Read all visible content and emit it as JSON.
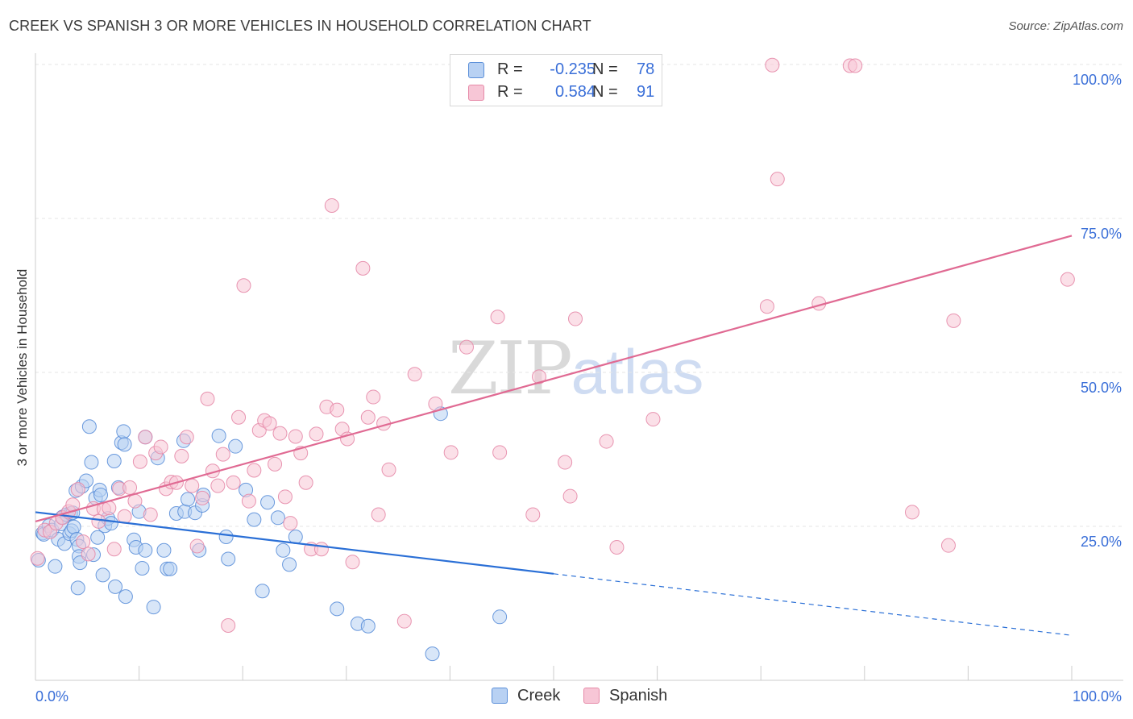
{
  "title": "CREEK VS SPANISH 3 OR MORE VEHICLES IN HOUSEHOLD CORRELATION CHART",
  "source": "Source: ZipAtlas.com",
  "watermark": {
    "zip": "ZIP",
    "atlas": "atlas"
  },
  "legend_top": {
    "rows": [
      {
        "r_label": "R =",
        "r_value": "-0.235",
        "n_label": "N =",
        "n_value": "78"
      },
      {
        "r_label": "R =",
        "r_value": "0.584",
        "n_label": "N =",
        "n_value": "91"
      }
    ]
  },
  "colors": {
    "creek_fill": "#b8d1f3",
    "creek_stroke": "#5b8fd9",
    "creek_line": "#2a6fd6",
    "spanish_fill": "#f7c6d6",
    "spanish_stroke": "#e68aa8",
    "spanish_line": "#e06a93",
    "axis_text": "#3a6fd8",
    "grid": "#e6e6e6"
  },
  "chart_data": {
    "type": "scatter",
    "title": "CREEK VS SPANISH 3 OR MORE VEHICLES IN HOUSEHOLD CORRELATION CHART",
    "xlabel": "",
    "ylabel": "3 or more Vehicles in Household",
    "xlim": [
      0,
      100
    ],
    "ylim": [
      0,
      100
    ],
    "x_tick_labels": [
      "0.0%",
      "100.0%"
    ],
    "y_tick_labels": [
      "25.0%",
      "50.0%",
      "75.0%",
      "100.0%"
    ],
    "y_ticks": [
      25,
      50,
      75,
      100
    ],
    "legend_position": "bottom-center",
    "series": [
      {
        "name": "Creek",
        "r": -0.235,
        "n": 78,
        "trend": {
          "x0": 0,
          "y0": 27.3,
          "x1": 50,
          "y1": 17.3,
          "dashed_to": 100,
          "dashed_y": 7.3
        },
        "points": [
          [
            0.3,
            19.5
          ],
          [
            0.7,
            23.9
          ],
          [
            0.8,
            23.7
          ],
          [
            1.3,
            25.1
          ],
          [
            1.6,
            24.4
          ],
          [
            1.9,
            18.5
          ],
          [
            2.2,
            22.9
          ],
          [
            2.5,
            25.4
          ],
          [
            2.6,
            26.5
          ],
          [
            2.8,
            22.2
          ],
          [
            3.0,
            26.9
          ],
          [
            3.3,
            23.8
          ],
          [
            3.5,
            24.3
          ],
          [
            3.4,
            27.1
          ],
          [
            3.6,
            27.2
          ],
          [
            3.7,
            24.9
          ],
          [
            3.9,
            30.8
          ],
          [
            4.0,
            22.9
          ],
          [
            4.2,
            21.8
          ],
          [
            4.2,
            20.1
          ],
          [
            4.1,
            15.0
          ],
          [
            4.3,
            19.1
          ],
          [
            4.5,
            31.5
          ],
          [
            4.9,
            32.4
          ],
          [
            5.2,
            41.2
          ],
          [
            5.4,
            35.4
          ],
          [
            5.6,
            20.4
          ],
          [
            5.8,
            29.6
          ],
          [
            6.0,
            23.2
          ],
          [
            6.2,
            30.9
          ],
          [
            6.3,
            30.1
          ],
          [
            6.5,
            17.1
          ],
          [
            6.7,
            25.1
          ],
          [
            7.0,
            26.3
          ],
          [
            7.3,
            25.5
          ],
          [
            7.6,
            35.6
          ],
          [
            7.7,
            15.2
          ],
          [
            8.0,
            31.3
          ],
          [
            8.3,
            38.6
          ],
          [
            8.5,
            40.4
          ],
          [
            8.6,
            38.3
          ],
          [
            8.7,
            13.6
          ],
          [
            9.5,
            22.8
          ],
          [
            9.7,
            21.6
          ],
          [
            10.0,
            27.4
          ],
          [
            10.3,
            18.2
          ],
          [
            10.6,
            21.1
          ],
          [
            10.6,
            39.5
          ],
          [
            11.4,
            11.9
          ],
          [
            11.8,
            36.1
          ],
          [
            12.4,
            21.1
          ],
          [
            12.7,
            18.1
          ],
          [
            13.0,
            18.1
          ],
          [
            13.6,
            27.1
          ],
          [
            14.3,
            38.9
          ],
          [
            14.4,
            27.4
          ],
          [
            14.7,
            29.4
          ],
          [
            15.4,
            27.2
          ],
          [
            15.8,
            21.1
          ],
          [
            16.1,
            28.4
          ],
          [
            16.2,
            30.1
          ],
          [
            17.7,
            39.7
          ],
          [
            18.4,
            23.3
          ],
          [
            18.6,
            19.7
          ],
          [
            19.3,
            38.0
          ],
          [
            20.3,
            30.9
          ],
          [
            21.1,
            26.1
          ],
          [
            21.9,
            14.5
          ],
          [
            22.4,
            28.9
          ],
          [
            23.4,
            26.4
          ],
          [
            23.9,
            21.1
          ],
          [
            24.5,
            18.8
          ],
          [
            25.1,
            23.3
          ],
          [
            29.1,
            11.6
          ],
          [
            31.1,
            9.2
          ],
          [
            32.1,
            8.8
          ],
          [
            38.3,
            4.3
          ],
          [
            39.1,
            43.3
          ],
          [
            44.8,
            10.3
          ]
        ]
      },
      {
        "name": "Spanish",
        "r": 0.584,
        "n": 91,
        "trend": {
          "x0": 0,
          "y0": 25.8,
          "x1": 100,
          "y1": 72.2
        },
        "points": [
          [
            0.2,
            19.8
          ],
          [
            0.9,
            24.4
          ],
          [
            1.4,
            24.1
          ],
          [
            2.0,
            25.5
          ],
          [
            2.6,
            26.4
          ],
          [
            3.2,
            27.4
          ],
          [
            3.6,
            28.5
          ],
          [
            4.1,
            31.0
          ],
          [
            4.6,
            22.5
          ],
          [
            5.1,
            20.5
          ],
          [
            5.6,
            27.9
          ],
          [
            6.1,
            25.8
          ],
          [
            6.6,
            27.8
          ],
          [
            7.1,
            28.0
          ],
          [
            7.6,
            21.3
          ],
          [
            8.1,
            31.1
          ],
          [
            8.6,
            26.6
          ],
          [
            9.1,
            31.3
          ],
          [
            9.6,
            29.1
          ],
          [
            10.1,
            35.5
          ],
          [
            10.6,
            39.5
          ],
          [
            11.1,
            26.9
          ],
          [
            11.6,
            36.9
          ],
          [
            12.1,
            37.9
          ],
          [
            12.6,
            31.1
          ],
          [
            13.1,
            32.2
          ],
          [
            13.6,
            32.1
          ],
          [
            14.1,
            36.4
          ],
          [
            14.6,
            39.5
          ],
          [
            15.1,
            31.6
          ],
          [
            15.6,
            21.8
          ],
          [
            16.1,
            29.6
          ],
          [
            16.6,
            45.7
          ],
          [
            17.1,
            34.0
          ],
          [
            17.6,
            31.6
          ],
          [
            18.1,
            36.7
          ],
          [
            18.6,
            8.9
          ],
          [
            19.1,
            32.1
          ],
          [
            19.6,
            42.7
          ],
          [
            20.1,
            64.1
          ],
          [
            20.6,
            29.1
          ],
          [
            21.1,
            34.1
          ],
          [
            21.6,
            40.6
          ],
          [
            22.1,
            42.2
          ],
          [
            22.6,
            41.7
          ],
          [
            23.1,
            35.1
          ],
          [
            23.6,
            40.1
          ],
          [
            24.1,
            29.8
          ],
          [
            24.6,
            25.5
          ],
          [
            25.1,
            39.6
          ],
          [
            25.6,
            36.9
          ],
          [
            26.1,
            32.1
          ],
          [
            26.6,
            21.3
          ],
          [
            27.1,
            40.0
          ],
          [
            27.6,
            21.3
          ],
          [
            28.1,
            44.4
          ],
          [
            28.6,
            77.1
          ],
          [
            29.1,
            43.9
          ],
          [
            29.6,
            40.8
          ],
          [
            30.1,
            39.2
          ],
          [
            30.6,
            19.2
          ],
          [
            31.6,
            66.9
          ],
          [
            32.1,
            42.7
          ],
          [
            32.6,
            46.0
          ],
          [
            33.1,
            26.9
          ],
          [
            33.6,
            41.7
          ],
          [
            34.1,
            34.2
          ],
          [
            35.6,
            9.6
          ],
          [
            36.6,
            49.7
          ],
          [
            38.6,
            44.9
          ],
          [
            40.1,
            37.0
          ],
          [
            41.6,
            54.1
          ],
          [
            44.6,
            59.0
          ],
          [
            44.8,
            37.0
          ],
          [
            48.0,
            26.9
          ],
          [
            48.6,
            49.3
          ],
          [
            51.1,
            35.4
          ],
          [
            51.6,
            29.9
          ],
          [
            52.1,
            58.7
          ],
          [
            55.1,
            38.8
          ],
          [
            56.1,
            21.6
          ],
          [
            59.6,
            42.4
          ],
          [
            70.6,
            60.7
          ],
          [
            71.1,
            99.9
          ],
          [
            71.6,
            81.4
          ],
          [
            75.6,
            61.2
          ],
          [
            78.6,
            99.8
          ],
          [
            79.1,
            99.8
          ],
          [
            84.6,
            27.3
          ],
          [
            88.1,
            21.9
          ],
          [
            88.6,
            58.4
          ],
          [
            99.6,
            65.1
          ]
        ]
      }
    ]
  },
  "legend_bottom": {
    "items": [
      "Creek",
      "Spanish"
    ]
  }
}
